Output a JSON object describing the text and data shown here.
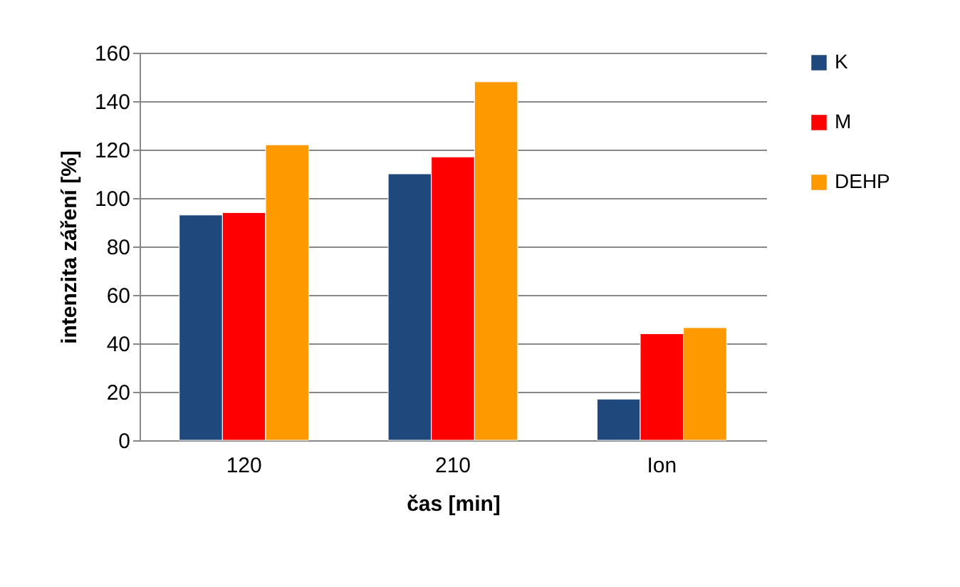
{
  "chart_data": {
    "type": "bar",
    "xlabel": "čas [min]",
    "ylabel": "intenzita záření [%]",
    "categories": [
      "120",
      "210",
      "Ion"
    ],
    "series": [
      {
        "name": "K",
        "color": "#1f497d",
        "values": [
          93,
          110,
          17
        ]
      },
      {
        "name": "M",
        "color": "#ff0000",
        "values": [
          94,
          117,
          44
        ]
      },
      {
        "name": "DEHP",
        "color": "#ff9900",
        "values": [
          122,
          148,
          46.5
        ]
      }
    ],
    "ylim": [
      0,
      160
    ],
    "yticks": [
      0,
      20,
      40,
      60,
      80,
      100,
      120,
      140,
      160
    ],
    "grid": "y",
    "legend": "right"
  }
}
